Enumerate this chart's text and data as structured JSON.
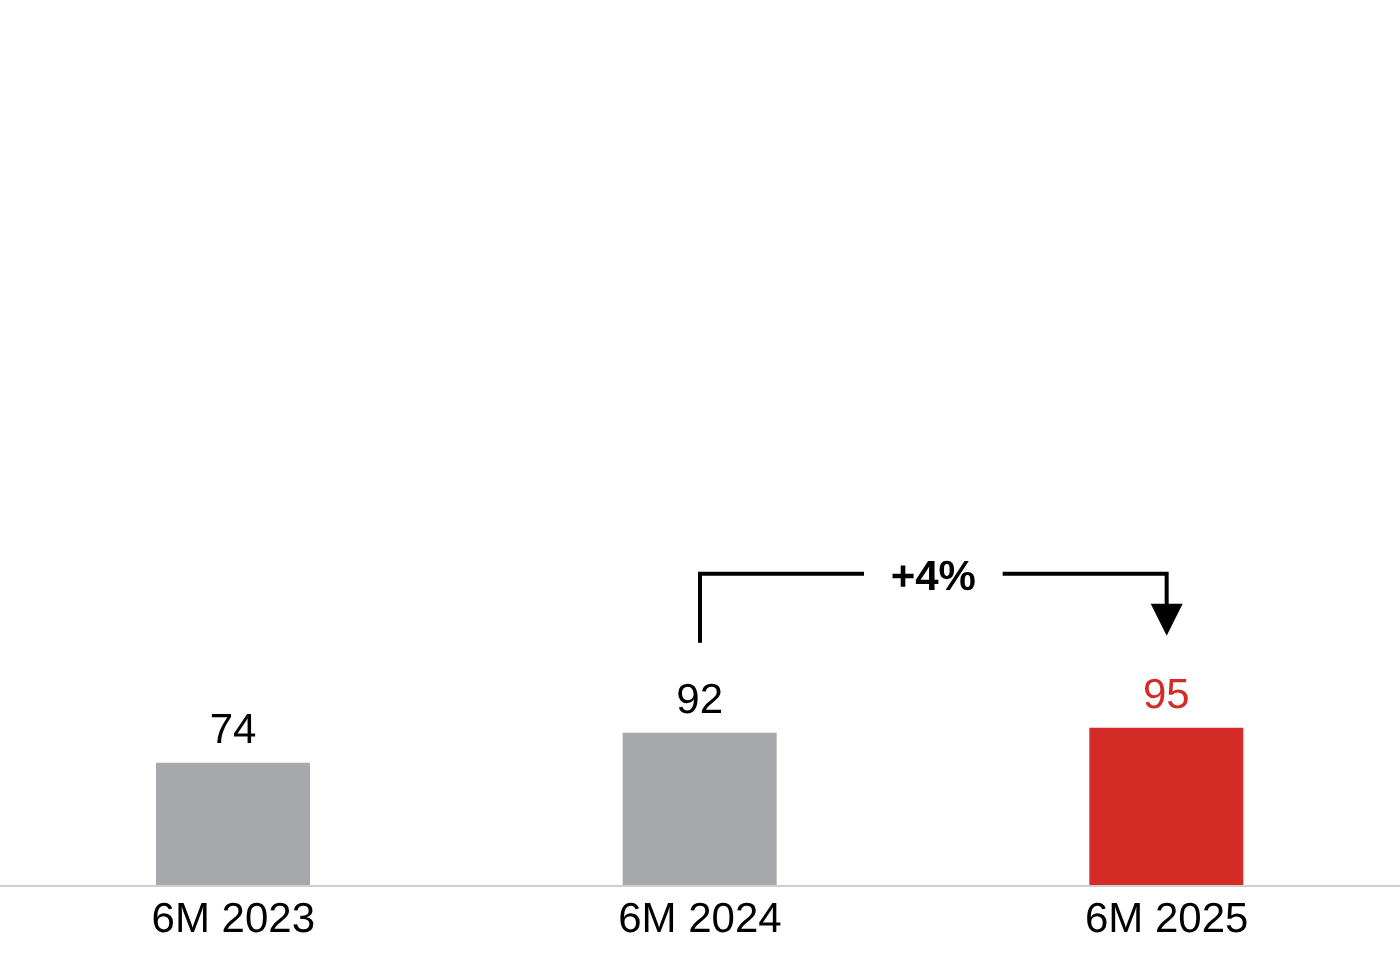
{
  "chart_data": {
    "type": "bar",
    "categories": [
      "6M 2023",
      "6M 2024",
      "6M 2025"
    ],
    "values": [
      74,
      92,
      95
    ],
    "colors": [
      "#a6a8ab",
      "#a6a8ab",
      "#d52b27"
    ],
    "data_labels": true,
    "annotations": [
      "+4%"
    ]
  }
}
